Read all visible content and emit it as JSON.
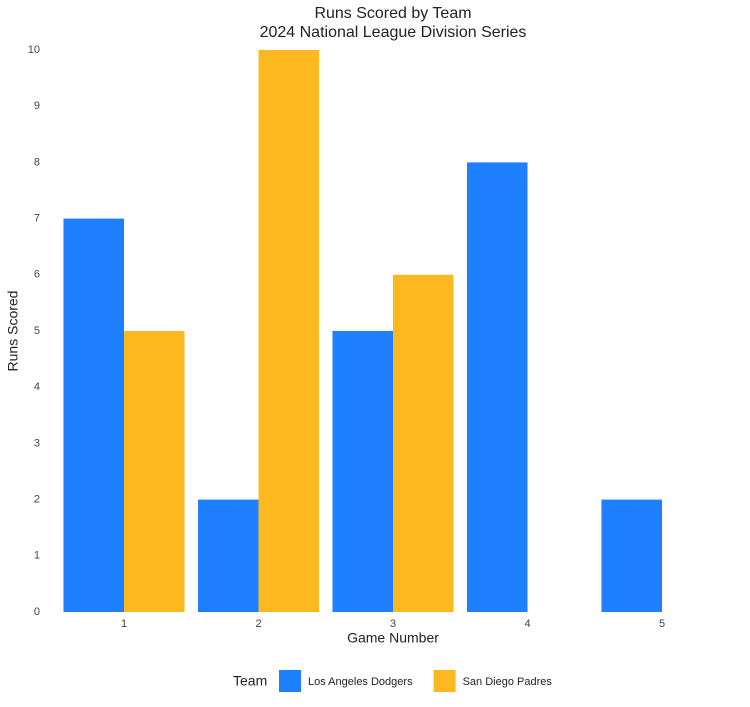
{
  "chart_data": {
    "type": "bar",
    "title": "Runs Scored by Team",
    "subtitle": "2024 National League Division Series",
    "x_label": "Game Number",
    "y_label": "Runs Scored",
    "legend_title": "Team",
    "categories": [
      "1",
      "2",
      "3",
      "4",
      "5"
    ],
    "series": [
      {
        "name": "Los Angeles Dodgers",
        "color": "#1e7fff",
        "values": [
          7,
          2,
          5,
          8,
          2
        ]
      },
      {
        "name": "San Diego Padres",
        "color": "#fdb820",
        "values": [
          5,
          10,
          6,
          0,
          0
        ]
      }
    ],
    "ylim": [
      0,
      10
    ],
    "yticks": [
      0,
      1,
      2,
      3,
      4,
      5,
      6,
      7,
      8,
      9,
      10
    ],
    "grid": false,
    "legend": "bottom"
  }
}
